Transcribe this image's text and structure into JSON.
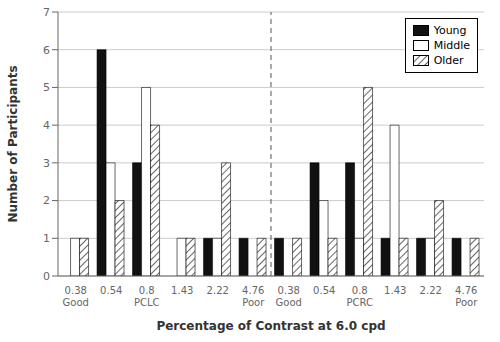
{
  "chart_data": {
    "type": "bar",
    "xlabel": "Percentage of Contrast at 6.0 cpd",
    "ylabel": "Number of Participants",
    "categories": [
      "0.38\nGood",
      "0.54",
      "0.8\nPCLC",
      "1.43",
      "2.22",
      "4.76\nPoor",
      "0.38\nGood",
      "0.54",
      "0.8\nPCRC",
      "1.43",
      "2.22",
      "4.76\nPoor"
    ],
    "series": [
      {
        "name": "Young",
        "color": "#111111",
        "values": [
          0,
          6,
          3,
          0,
          1,
          1,
          1,
          3,
          3,
          1,
          1,
          1
        ]
      },
      {
        "name": "Middle",
        "color": "#ffffff",
        "values": [
          1,
          3,
          5,
          1,
          1,
          0,
          0,
          2,
          1,
          4,
          1,
          0
        ]
      },
      {
        "name": "Older",
        "color": "#ffffff",
        "values": [
          1,
          2,
          4,
          1,
          3,
          1,
          1,
          1,
          5,
          1,
          2,
          1
        ]
      }
    ],
    "ylim": [
      0,
      7
    ],
    "yticks": [
      0,
      1,
      2,
      3,
      4,
      5,
      6,
      7
    ],
    "grid": true,
    "legend": "upper right"
  }
}
